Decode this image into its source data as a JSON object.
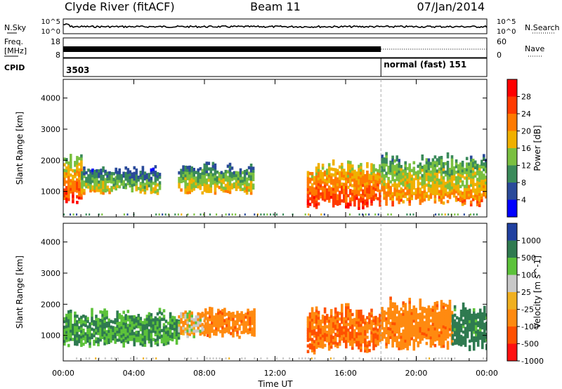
{
  "header": {
    "station": "Clyde River (fitACF)",
    "beam": "Beam 11",
    "date": "07/Jan/2014"
  },
  "noise_panel": {
    "left_label": "N.Sky",
    "right_label": "N.Search",
    "y_ticks": [
      "10^5",
      "10^0"
    ]
  },
  "freq_panel": {
    "left_label_1": "Freq.",
    "left_label_2": "[MHz]",
    "left_ticks": [
      "18",
      "8"
    ],
    "right_label": "Nave",
    "right_ticks": [
      "60",
      "0"
    ]
  },
  "cpid_panel": {
    "label": "CPID",
    "first": "3503",
    "second": "normal (fast) 151"
  },
  "time_axis": {
    "label": "Time UT",
    "ticks": [
      "00:00",
      "04:00",
      "08:00",
      "12:00",
      "16:00",
      "20:00",
      "00:00"
    ]
  },
  "chart_data": [
    {
      "type": "heatmap",
      "title": "",
      "xlabel": "Time UT",
      "ylabel": "Slant Range [km]",
      "x_ticks": [
        "00:00",
        "04:00",
        "08:00",
        "12:00",
        "16:00",
        "20:00",
        "00:00"
      ],
      "y_ticks": [
        1000,
        2000,
        3000,
        4000
      ],
      "xlim_hours": [
        0,
        24
      ],
      "ylim_km": [
        180,
        4600
      ],
      "colorbar": {
        "label": "Power [dB]",
        "ticks": [
          4,
          8,
          12,
          16,
          20,
          24,
          28
        ],
        "range": [
          0,
          30
        ]
      },
      "echo_regions": [
        {
          "t_start": 0.0,
          "t_end": 1.0,
          "r_min": 600,
          "r_max": 2200,
          "power_db": 26
        },
        {
          "t_start": 1.0,
          "t_end": 3.0,
          "r_min": 900,
          "r_max": 1800,
          "power_db": 18
        },
        {
          "t_start": 3.0,
          "t_end": 5.5,
          "r_min": 900,
          "r_max": 1800,
          "power_db": 17
        },
        {
          "t_start": 6.5,
          "t_end": 10.8,
          "r_min": 900,
          "r_max": 1900,
          "power_db": 19
        },
        {
          "t_start": 13.8,
          "t_end": 18.0,
          "r_min": 400,
          "r_max": 2000,
          "power_db": 27
        },
        {
          "t_start": 18.0,
          "t_end": 24.0,
          "r_min": 500,
          "r_max": 2200,
          "power_db": 22
        }
      ]
    },
    {
      "type": "heatmap",
      "title": "",
      "xlabel": "Time UT",
      "ylabel": "Slant Range [km]",
      "x_ticks": [
        "00:00",
        "04:00",
        "08:00",
        "12:00",
        "16:00",
        "20:00",
        "00:00"
      ],
      "y_ticks": [
        1000,
        2000,
        3000,
        4000
      ],
      "xlim_hours": [
        0,
        24
      ],
      "ylim_km": [
        180,
        4600
      ],
      "colorbar": {
        "label": "Velocity [m s^-1]",
        "ticks": [
          1000,
          500,
          100,
          25,
          -25,
          -100,
          -500,
          -1000
        ]
      },
      "echo_regions": [
        {
          "t_start": 0.0,
          "t_end": 6.5,
          "r_min": 600,
          "r_max": 1800,
          "velocity": 300
        },
        {
          "t_start": 6.5,
          "t_end": 8.0,
          "r_min": 900,
          "r_max": 1800,
          "velocity": -25
        },
        {
          "t_start": 8.0,
          "t_end": 10.8,
          "r_min": 900,
          "r_max": 1900,
          "velocity": -200
        },
        {
          "t_start": 13.8,
          "t_end": 18.0,
          "r_min": 400,
          "r_max": 2000,
          "velocity": -300
        },
        {
          "t_start": 18.0,
          "t_end": 22.0,
          "r_min": 500,
          "r_max": 2200,
          "velocity": -200
        },
        {
          "t_start": 22.0,
          "t_end": 24.0,
          "r_min": 500,
          "r_max": 2000,
          "velocity": 400
        }
      ]
    }
  ]
}
